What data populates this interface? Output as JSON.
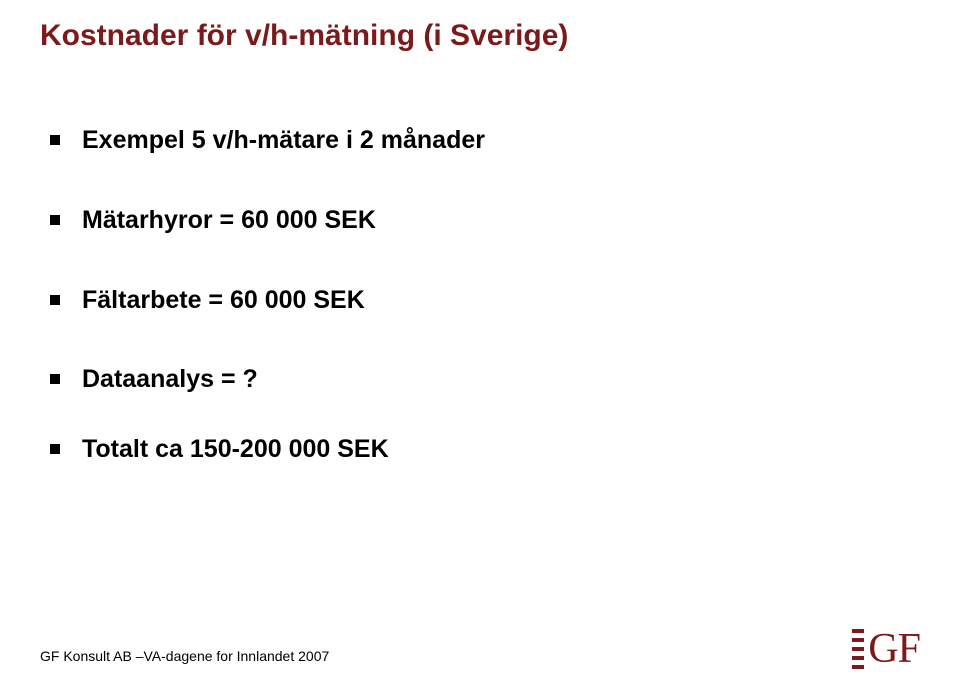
{
  "title_color": "#7b1a1a",
  "title": "Kostnader för v/h-mätning (i Sverige)",
  "bullets": [
    {
      "text": "Exempel 5 v/h-mätare i 2 månader"
    },
    {
      "text": "Mätarhyror = 60 000 SEK"
    },
    {
      "text": "Fältarbete = 60 000 SEK"
    },
    {
      "text": "Dataanalys = ?"
    },
    {
      "text": "Totalt ca 150-200 000 SEK"
    }
  ],
  "footer": "GF Konsult AB –VA-dagene for Innlandet 2007",
  "logo": {
    "text": "GF",
    "color": "#7b1a1a"
  }
}
